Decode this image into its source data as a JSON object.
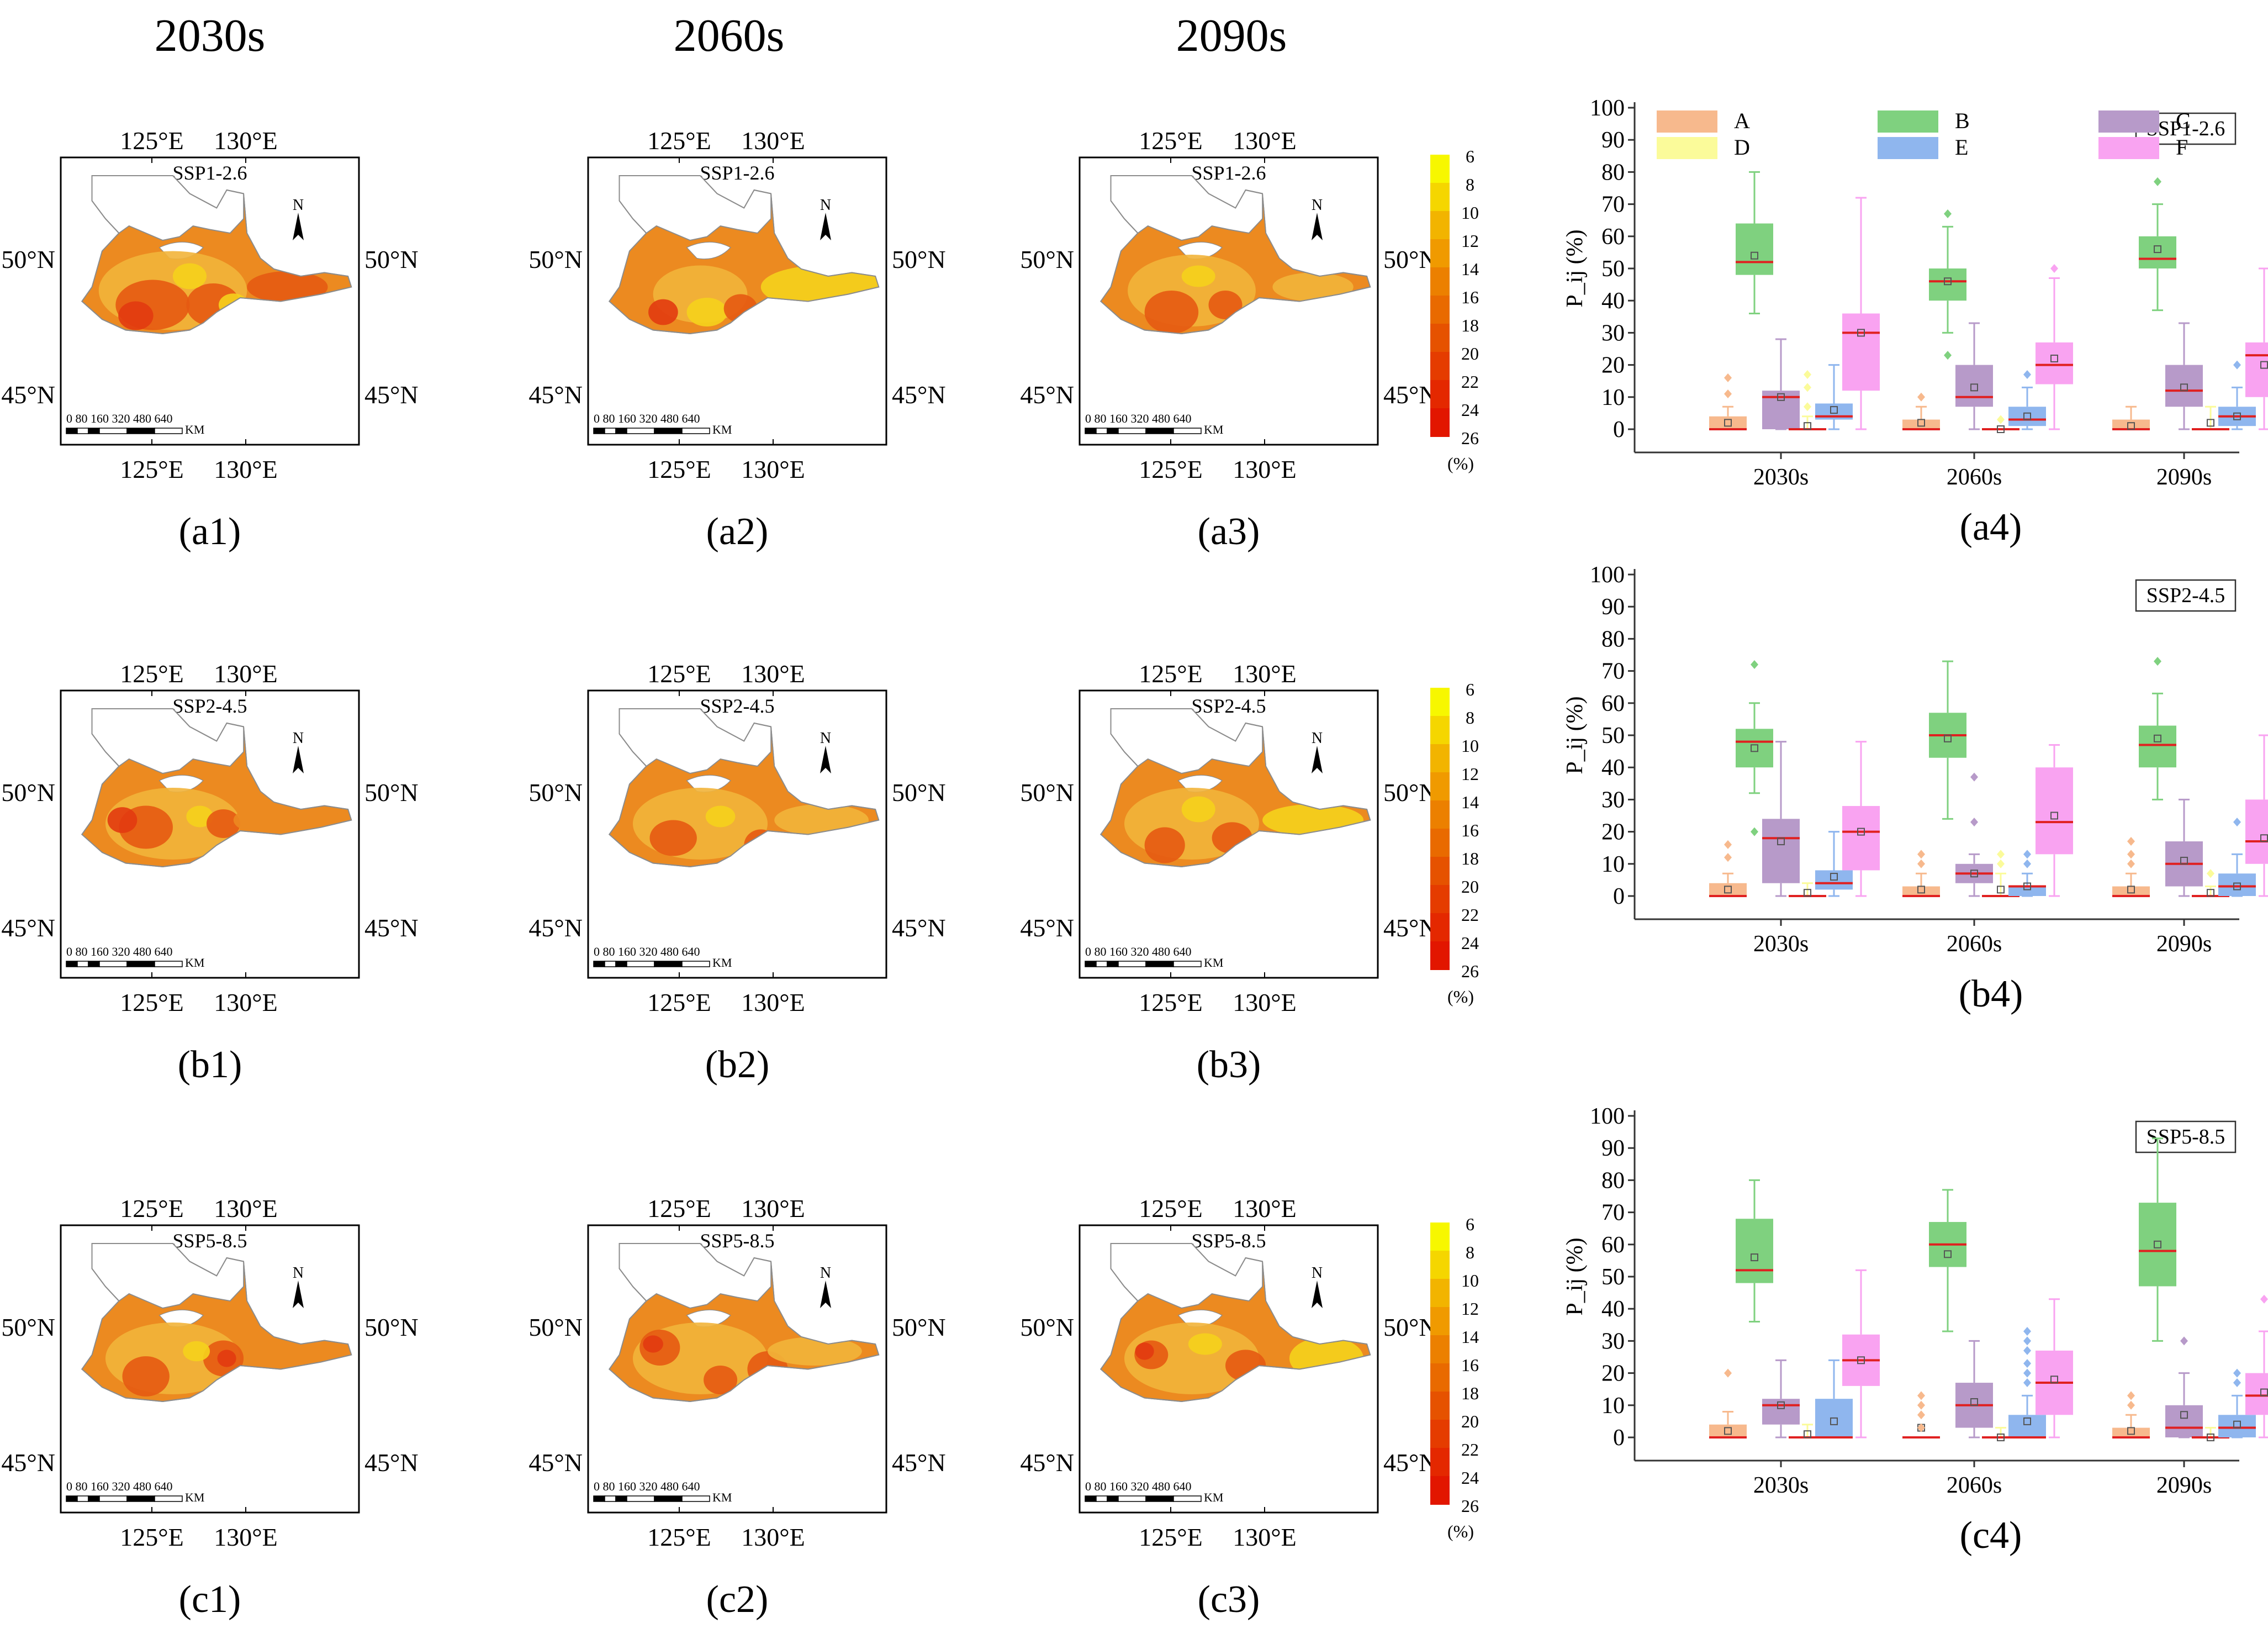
{
  "column_headers": [
    "2030s",
    "2060s",
    "2090s"
  ],
  "map_panel_labels": [
    [
      "(a1)",
      "(a2)",
      "(a3)"
    ],
    [
      "(b1)",
      "(b2)",
      "(b3)"
    ],
    [
      "(c1)",
      "(c2)",
      "(c3)"
    ]
  ],
  "box_panel_labels": [
    "(a4)",
    "(b4)",
    "(c4)"
  ],
  "scenarios": [
    "SSP1-2.6",
    "SSP2-4.5",
    "SSP5-8.5"
  ],
  "map_axes": {
    "top_lon_ticks": [
      "125°E",
      "130°E"
    ],
    "bottom_lon_ticks": [
      "125°E",
      "130°E"
    ],
    "left_lat_ticks": [
      "50°N",
      "45°N"
    ],
    "right_lat_ticks": [
      "50°N",
      "45°N"
    ],
    "scale_bar_numbers": "0 80 160   320   480   640",
    "scale_bar_unit": "KM",
    "north_label": "N"
  },
  "colorbar": {
    "ticks": [
      "6",
      "8",
      "10",
      "12",
      "14",
      "16",
      "18",
      "20",
      "22",
      "24",
      "26"
    ],
    "unit": "(%)",
    "colors": [
      "#f7f700",
      "#f5d600",
      "#f2b400",
      "#f09a00",
      "#ec8000",
      "#e96a00",
      "#e65200",
      "#e53c00",
      "#e42800",
      "#e21600"
    ]
  },
  "map_region_colors": {
    "none": "#ffffff",
    "outline": "#8c8c8c",
    "base": "#ec8a20",
    "yellow": "#f5d11c",
    "light": "#f2b43a",
    "dark": "#e55a12",
    "red": "#e23b10"
  },
  "chart_data": [
    {
      "type": "box",
      "panel": "(a4)",
      "scenario": "SSP1-2.6",
      "categories": [
        "2030s",
        "2060s",
        "2090s"
      ],
      "ylabel": "P_ij (%)",
      "ylim": [
        0,
        100
      ],
      "yticks": [
        0,
        10,
        20,
        30,
        40,
        50,
        60,
        70,
        80,
        90,
        100
      ],
      "legend": [
        {
          "name": "A",
          "color": "#f7b98d"
        },
        {
          "name": "B",
          "color": "#7fd17f"
        },
        {
          "name": "C",
          "color": "#b79ac9"
        },
        {
          "name": "D",
          "color": "#fbfb9a"
        },
        {
          "name": "E",
          "color": "#8fb6ee"
        },
        {
          "name": "F",
          "color": "#f9a3f1"
        }
      ],
      "series": [
        {
          "name": "A",
          "boxes": [
            {
              "whislo": 0,
              "q1": 0,
              "med": 0,
              "q3": 4,
              "whishi": 7,
              "mean": 2,
              "fliers": [
                11,
                16
              ]
            },
            {
              "whislo": 0,
              "q1": 0,
              "med": 0,
              "q3": 3,
              "whishi": 7,
              "mean": 2,
              "fliers": [
                10
              ]
            },
            {
              "whislo": 0,
              "q1": 0,
              "med": 0,
              "q3": 3,
              "whishi": 7,
              "mean": 1,
              "fliers": []
            }
          ]
        },
        {
          "name": "B",
          "boxes": [
            {
              "whislo": 36,
              "q1": 48,
              "med": 52,
              "q3": 64,
              "whishi": 80,
              "mean": 54,
              "fliers": []
            },
            {
              "whislo": 30,
              "q1": 40,
              "med": 46,
              "q3": 50,
              "whishi": 63,
              "mean": 46,
              "fliers": [
                23,
                67
              ]
            },
            {
              "whislo": 37,
              "q1": 50,
              "med": 53,
              "q3": 60,
              "whishi": 70,
              "mean": 56,
              "fliers": [
                77
              ]
            }
          ]
        },
        {
          "name": "C",
          "boxes": [
            {
              "whislo": 0,
              "q1": 0,
              "med": 10,
              "q3": 12,
              "whishi": 28,
              "mean": 10,
              "fliers": []
            },
            {
              "whislo": 0,
              "q1": 7,
              "med": 10,
              "q3": 20,
              "whishi": 33,
              "mean": 13,
              "fliers": []
            },
            {
              "whislo": 0,
              "q1": 7,
              "med": 12,
              "q3": 20,
              "whishi": 33,
              "mean": 13,
              "fliers": []
            }
          ]
        },
        {
          "name": "D",
          "boxes": [
            {
              "whislo": 0,
              "q1": 0,
              "med": 0,
              "q3": 0,
              "whishi": 4,
              "mean": 1,
              "fliers": [
                7,
                13,
                17
              ]
            },
            {
              "whislo": 0,
              "q1": 0,
              "med": 0,
              "q3": 0,
              "whishi": 0,
              "mean": 0,
              "fliers": [
                3
              ]
            },
            {
              "whislo": 0,
              "q1": 0,
              "med": 0,
              "q3": 0,
              "whishi": 7,
              "mean": 2,
              "fliers": []
            }
          ]
        },
        {
          "name": "E",
          "boxes": [
            {
              "whislo": 0,
              "q1": 3,
              "med": 4,
              "q3": 8,
              "whishi": 20,
              "mean": 6,
              "fliers": []
            },
            {
              "whislo": 0,
              "q1": 1,
              "med": 3,
              "q3": 7,
              "whishi": 13,
              "mean": 4,
              "fliers": [
                17
              ]
            },
            {
              "whislo": 0,
              "q1": 1,
              "med": 4,
              "q3": 7,
              "whishi": 13,
              "mean": 4,
              "fliers": [
                20
              ]
            }
          ]
        },
        {
          "name": "F",
          "boxes": [
            {
              "whislo": 0,
              "q1": 12,
              "med": 30,
              "q3": 36,
              "whishi": 72,
              "mean": 30,
              "fliers": []
            },
            {
              "whislo": 0,
              "q1": 14,
              "med": 20,
              "q3": 27,
              "whishi": 47,
              "mean": 22,
              "fliers": [
                50
              ]
            },
            {
              "whislo": 0,
              "q1": 10,
              "med": 23,
              "q3": 27,
              "whishi": 50,
              "mean": 20,
              "fliers": []
            }
          ]
        }
      ]
    },
    {
      "type": "box",
      "panel": "(b4)",
      "scenario": "SSP2-4.5",
      "categories": [
        "2030s",
        "2060s",
        "2090s"
      ],
      "ylabel": "P_ij (%)",
      "ylim": [
        0,
        100
      ],
      "yticks": [
        0,
        10,
        20,
        30,
        40,
        50,
        60,
        70,
        80,
        90,
        100
      ],
      "series": [
        {
          "name": "A",
          "boxes": [
            {
              "whislo": 0,
              "q1": 0,
              "med": 0,
              "q3": 4,
              "whishi": 7,
              "mean": 2,
              "fliers": [
                12,
                16
              ]
            },
            {
              "whislo": 0,
              "q1": 0,
              "med": 0,
              "q3": 3,
              "whishi": 7,
              "mean": 2,
              "fliers": [
                10,
                13
              ]
            },
            {
              "whislo": 0,
              "q1": 0,
              "med": 0,
              "q3": 3,
              "whishi": 7,
              "mean": 2,
              "fliers": [
                10,
                13,
                17
              ]
            }
          ]
        },
        {
          "name": "B",
          "boxes": [
            {
              "whislo": 32,
              "q1": 40,
              "med": 48,
              "q3": 52,
              "whishi": 60,
              "mean": 46,
              "fliers": [
                20,
                72
              ]
            },
            {
              "whislo": 24,
              "q1": 43,
              "med": 50,
              "q3": 57,
              "whishi": 73,
              "mean": 49,
              "fliers": []
            },
            {
              "whislo": 30,
              "q1": 40,
              "med": 47,
              "q3": 53,
              "whishi": 63,
              "mean": 49,
              "fliers": [
                73
              ]
            }
          ]
        },
        {
          "name": "C",
          "boxes": [
            {
              "whislo": 0,
              "q1": 4,
              "med": 18,
              "q3": 24,
              "whishi": 48,
              "mean": 17,
              "fliers": []
            },
            {
              "whislo": 0,
              "q1": 4,
              "med": 7,
              "q3": 10,
              "whishi": 13,
              "mean": 7,
              "fliers": [
                23,
                37
              ]
            },
            {
              "whislo": 0,
              "q1": 3,
              "med": 10,
              "q3": 17,
              "whishi": 30,
              "mean": 11,
              "fliers": []
            }
          ]
        },
        {
          "name": "D",
          "boxes": [
            {
              "whislo": 0,
              "q1": 0,
              "med": 0,
              "q3": 0,
              "whishi": 4,
              "mean": 1,
              "fliers": []
            },
            {
              "whislo": 0,
              "q1": 0,
              "med": 0,
              "q3": 0,
              "whishi": 7,
              "mean": 2,
              "fliers": [
                10,
                13
              ]
            },
            {
              "whislo": 0,
              "q1": 0,
              "med": 0,
              "q3": 0,
              "whishi": 3,
              "mean": 1,
              "fliers": [
                7
              ]
            }
          ]
        },
        {
          "name": "E",
          "boxes": [
            {
              "whislo": 0,
              "q1": 2,
              "med": 4,
              "q3": 8,
              "whishi": 20,
              "mean": 6,
              "fliers": []
            },
            {
              "whislo": 0,
              "q1": 0,
              "med": 3,
              "q3": 3,
              "whishi": 7,
              "mean": 3,
              "fliers": [
                10,
                13
              ]
            },
            {
              "whislo": 0,
              "q1": 0,
              "med": 3,
              "q3": 7,
              "whishi": 13,
              "mean": 3,
              "fliers": [
                23
              ]
            }
          ]
        },
        {
          "name": "F",
          "boxes": [
            {
              "whislo": 0,
              "q1": 8,
              "med": 20,
              "q3": 28,
              "whishi": 48,
              "mean": 20,
              "fliers": []
            },
            {
              "whislo": 0,
              "q1": 13,
              "med": 23,
              "q3": 40,
              "whishi": 47,
              "mean": 25,
              "fliers": []
            },
            {
              "whislo": 0,
              "q1": 10,
              "med": 17,
              "q3": 30,
              "whishi": 50,
              "mean": 18,
              "fliers": []
            }
          ]
        }
      ]
    },
    {
      "type": "box",
      "panel": "(c4)",
      "scenario": "SSP5-8.5",
      "categories": [
        "2030s",
        "2060s",
        "2090s"
      ],
      "ylabel": "P_ij (%)",
      "ylim": [
        0,
        100
      ],
      "yticks": [
        0,
        10,
        20,
        30,
        40,
        50,
        60,
        70,
        80,
        90,
        100
      ],
      "series": [
        {
          "name": "A",
          "boxes": [
            {
              "whislo": 0,
              "q1": 0,
              "med": 0,
              "q3": 4,
              "whishi": 8,
              "mean": 2,
              "fliers": [
                20
              ]
            },
            {
              "whislo": 0,
              "q1": 0,
              "med": 0,
              "q3": 0,
              "whishi": 0,
              "mean": 3,
              "fliers": [
                3,
                7,
                10,
                13
              ]
            },
            {
              "whislo": 0,
              "q1": 0,
              "med": 0,
              "q3": 3,
              "whishi": 7,
              "mean": 2,
              "fliers": [
                10,
                13
              ]
            }
          ]
        },
        {
          "name": "B",
          "boxes": [
            {
              "whislo": 36,
              "q1": 48,
              "med": 52,
              "q3": 68,
              "whishi": 80,
              "mean": 56,
              "fliers": []
            },
            {
              "whislo": 33,
              "q1": 53,
              "med": 60,
              "q3": 67,
              "whishi": 77,
              "mean": 57,
              "fliers": []
            },
            {
              "whislo": 30,
              "q1": 47,
              "med": 58,
              "q3": 73,
              "whishi": 93,
              "mean": 60,
              "fliers": []
            }
          ]
        },
        {
          "name": "C",
          "boxes": [
            {
              "whislo": 0,
              "q1": 4,
              "med": 10,
              "q3": 12,
              "whishi": 24,
              "mean": 10,
              "fliers": []
            },
            {
              "whislo": 0,
              "q1": 3,
              "med": 10,
              "q3": 17,
              "whishi": 30,
              "mean": 11,
              "fliers": []
            },
            {
              "whislo": 0,
              "q1": 0,
              "med": 3,
              "q3": 10,
              "whishi": 20,
              "mean": 7,
              "fliers": [
                30
              ]
            }
          ]
        },
        {
          "name": "D",
          "boxes": [
            {
              "whislo": 0,
              "q1": 0,
              "med": 0,
              "q3": 0,
              "whishi": 4,
              "mean": 1,
              "fliers": []
            },
            {
              "whislo": 0,
              "q1": 0,
              "med": 0,
              "q3": 0,
              "whishi": 3,
              "mean": 0,
              "fliers": []
            },
            {
              "whislo": 0,
              "q1": 0,
              "med": 0,
              "q3": 0,
              "whishi": 3,
              "mean": 0,
              "fliers": []
            }
          ]
        },
        {
          "name": "E",
          "boxes": [
            {
              "whislo": 0,
              "q1": 0,
              "med": 0,
              "q3": 12,
              "whishi": 24,
              "mean": 5,
              "fliers": []
            },
            {
              "whislo": 0,
              "q1": 0,
              "med": 0,
              "q3": 7,
              "whishi": 13,
              "mean": 5,
              "fliers": [
                17,
                20,
                23,
                27,
                30,
                33
              ]
            },
            {
              "whislo": 0,
              "q1": 0,
              "med": 3,
              "q3": 7,
              "whishi": 13,
              "mean": 4,
              "fliers": [
                17,
                20
              ]
            }
          ]
        },
        {
          "name": "F",
          "boxes": [
            {
              "whislo": 0,
              "q1": 16,
              "med": 24,
              "q3": 32,
              "whishi": 52,
              "mean": 24,
              "fliers": []
            },
            {
              "whislo": 0,
              "q1": 7,
              "med": 17,
              "q3": 27,
              "whishi": 43,
              "mean": 18,
              "fliers": []
            },
            {
              "whislo": 0,
              "q1": 7,
              "med": 13,
              "q3": 20,
              "whishi": 33,
              "mean": 14,
              "fliers": [
                43
              ]
            }
          ]
        }
      ]
    }
  ]
}
